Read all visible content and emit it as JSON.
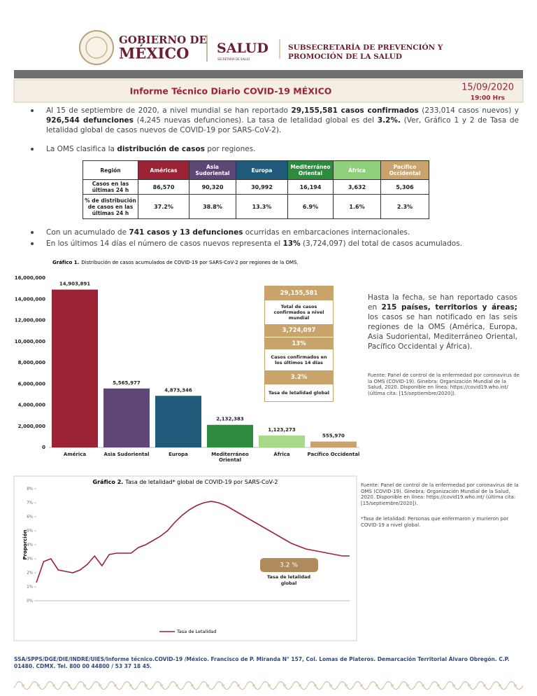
{
  "header": {
    "gov_line1": "GOBIERNO DE",
    "gov_line2": "MÉXICO",
    "salud": "SALUD",
    "salud_sub": "SECRETARÍA DE SALUD",
    "subsecretaria_line1": "SUBSECRETARÍA DE PREVENCIÓN Y",
    "subsecretaria_line2": "PROMOCIÓN DE LA SALUD"
  },
  "report": {
    "title": "Informe Técnico Diario COVID-19 MÉXICO",
    "date": "15/09/2020",
    "time": "19:00 Hrs"
  },
  "bullets_top": [
    [
      {
        "text": "Al 15 de septiembre de 2020, a nivel mundial se han reportado "
      },
      {
        "text": "29,155,581 casos confirmados",
        "bold": true
      },
      {
        "text": " (233,014 casos nuevos) y "
      },
      {
        "text": "926,544 defunciones",
        "bold": true
      },
      {
        "text": " (4,245 nuevas defunciones). La tasa de letalidad global es del "
      },
      {
        "text": "3.2%.",
        "bold": true
      },
      {
        "text": " (Ver, Gráfico 1 y 2 de Tasa de letalidad global de casos nuevos de COVID-19 por SARS-CoV-2)."
      }
    ],
    [
      {
        "text": "La OMS clasifica la "
      },
      {
        "text": "distribución de casos",
        "bold": true
      },
      {
        "text": " por regiones."
      }
    ]
  ],
  "table": {
    "header": [
      "Región",
      "Américas",
      "Asia Sudoriental",
      "Europa",
      "Mediterráneo Oriental",
      "África",
      "Pacífico Occidental"
    ],
    "header_colors": [
      "#ffffff",
      "#9b2335",
      "#5e4677",
      "#1f5a7a",
      "#2e8b3e",
      "#8fd07a",
      "#c9a36b"
    ],
    "rows": [
      [
        "Casos en las últimas 24 h",
        "86,570",
        "90,320",
        "30,992",
        "16,194",
        "3,632",
        "5,306"
      ],
      [
        "% de distribución de casos en las últimas 24 h",
        "37.2%",
        "38.8%",
        "13.3%",
        "6.9%",
        "1.6%",
        "2.3%"
      ]
    ]
  },
  "bullets_bottom": [
    [
      {
        "text": "Con un acumulado de "
      },
      {
        "text": "741 casos y 13 defunciones",
        "bold": true
      },
      {
        "text": " ocurridas en embarcaciones internacionales."
      }
    ],
    [
      {
        "text": "En los últimos 14 días el número de casos nuevos representa el "
      },
      {
        "text": "13%",
        "bold": true
      },
      {
        "text": " (3,724,097) del total de casos acumulados."
      }
    ]
  ],
  "chart_data": [
    {
      "type": "bar",
      "title_label": "Gráfico 1.",
      "title": "Distribución de casos acumulados de COVID-19 por SARS-CoV-2 por regiones de la OMS.",
      "categories": [
        "América",
        "Asia Sudoriental",
        "Europa",
        "Mediterráneo Oriental",
        "África",
        "Pacífico Occidental"
      ],
      "values": [
        14903891,
        5565977,
        4873346,
        2132383,
        1123273,
        555970
      ],
      "value_labels": [
        "14,903,891",
        "5,565,977",
        "4,873,346",
        "2,132,383",
        "1,123,273",
        "555,970"
      ],
      "colors": [
        "#9b2335",
        "#5e4677",
        "#1f5a7a",
        "#2e8b3e",
        "#a6d98a",
        "#c9a36b"
      ],
      "ylim": [
        0,
        16000000
      ],
      "yticks": [
        0,
        {
          "value": 2000000,
          "label": "2,000,000"
        },
        {
          "value": 4000000,
          "label": "4,000,000"
        },
        {
          "value": 6000000,
          "label": "6,000,000"
        },
        {
          "value": 8000000,
          "label": "8,000,000"
        },
        {
          "value": 10000000,
          "label": "10,000,000"
        },
        {
          "value": 12000000,
          "label": "12,000,000"
        },
        {
          "value": 14000000,
          "label": "14,000,000"
        },
        {
          "value": 16000000,
          "label": "16,000,000"
        }
      ]
    },
    {
      "type": "line",
      "title_label": "Gráfico 2.",
      "title": "Tasa de letalidad* global de COVID-19 por SARS-CoV-2",
      "y_label": "Proporción",
      "series": [
        {
          "name": "Tasa de Letalidad",
          "color": "#9b2335",
          "values": [
            1.3,
            2.8,
            3.0,
            2.2,
            2.1,
            2.0,
            2.2,
            2.6,
            3.2,
            2.5,
            3.3,
            3.4,
            3.4,
            3.4,
            3.8,
            4.0,
            4.3,
            4.6,
            5.0,
            5.6,
            6.1,
            6.5,
            6.8,
            7.0,
            7.1,
            7.0,
            6.8,
            6.5,
            6.2,
            5.9,
            5.6,
            5.3,
            5.0,
            4.7,
            4.4,
            4.1,
            3.9,
            3.7,
            3.6,
            3.5,
            3.4,
            3.3,
            3.2,
            3.2
          ]
        }
      ],
      "ylim": [
        0,
        8
      ],
      "yticks": [
        {
          "value": 0,
          "label": "0%"
        },
        {
          "value": 1,
          "label": "1%"
        },
        {
          "value": 2,
          "label": "2%"
        },
        {
          "value": 3,
          "label": "3%"
        },
        {
          "value": 4,
          "label": "4%"
        },
        {
          "value": 5,
          "label": "5%"
        },
        {
          "value": 6,
          "label": "6%"
        },
        {
          "value": 7,
          "label": "7%"
        },
        {
          "value": 8,
          "label": "8%"
        }
      ]
    }
  ],
  "summary_box": {
    "total": "29,155,581",
    "total_label": "Total de casos confirmados a nivel mundial",
    "recent": "3,724,097",
    "recent_pct": "13%",
    "recent_label": "Casos confirmados en los últimos 14 días",
    "lethality": "3.2%",
    "lethality_label": "Tasa de letalidad global"
  },
  "side_text": [
    {
      "text": "Hasta la fecha, se han reportado casos en "
    },
    {
      "text": "215 países, territorios y áreas;",
      "bold": true
    },
    {
      "text": " los casos se han notificado en las seis regiones de la OMS (América, Europa, Asia Sudoriental, Mediterráneo Oriental, Pacífico Occidental y África)."
    }
  ],
  "source_1": "Fuente: Panel de control de la enfermedad por coronavirus de la OMS (COVID-19). Ginebra: Organización Mundial de la Salud, 2020. Disponible en línea: https://covid19.who.int/ (última cita: [15/septiembre/2020]).",
  "chart2_callout": {
    "value": "3.2 %",
    "label": "Tasa de letalidad global"
  },
  "source_2": "Fuente: Panel de control de la enfermedad por coronavirus de la OMS (COVID-19). Ginebra: Organización Mundial de la Salud, 2020. Disponible en línea: https://covid19.who.int/ (última cita: [15/septiembre/2020]).",
  "note_2": "*Tasa de letalidad: Personas que enfermaron y murieron por COVID-19 a nivel global.",
  "footer": "SSA/SPPS/DGE/DIE/INDRE/UIES/Informe técnico.COVID-19 /México. Francisco de P. Miranda N° 157, Col. Lomas de Plateros. Demarcación Territorial Álvaro Obregón. C.P. 01480. CDMX. Tel. 800 00 44800 / 53 37 18 45."
}
